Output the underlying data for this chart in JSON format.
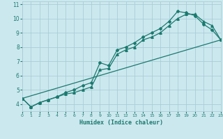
{
  "xlabel": "Humidex (Indice chaleur)",
  "bg_color": "#cce8ef",
  "grid_color": "#aacdd6",
  "line_color": "#1a7a6e",
  "xlim": [
    0,
    23
  ],
  "ylim": [
    3.5,
    11.2
  ],
  "xticks": [
    0,
    1,
    2,
    3,
    4,
    5,
    6,
    7,
    8,
    9,
    10,
    11,
    12,
    13,
    14,
    15,
    16,
    17,
    18,
    19,
    20,
    21,
    22,
    23
  ],
  "yticks": [
    4,
    5,
    6,
    7,
    8,
    9,
    10,
    11
  ],
  "series1_x": [
    0,
    1,
    2,
    3,
    4,
    5,
    6,
    7,
    8,
    9,
    10,
    11,
    12,
    13,
    14,
    15,
    16,
    17,
    18,
    19,
    20,
    21,
    22,
    23
  ],
  "series1_y": [
    4.4,
    3.8,
    4.1,
    4.3,
    4.5,
    4.7,
    4.8,
    5.0,
    5.2,
    6.4,
    6.5,
    7.5,
    7.8,
    8.0,
    8.5,
    8.7,
    9.0,
    9.5,
    10.0,
    10.3,
    10.3,
    9.8,
    9.5,
    8.5
  ],
  "series2_x": [
    0,
    1,
    2,
    3,
    4,
    5,
    6,
    7,
    8,
    9,
    10,
    11,
    12,
    13,
    14,
    15,
    16,
    17,
    18,
    19,
    20,
    21,
    22,
    23
  ],
  "series2_y": [
    4.4,
    3.8,
    4.1,
    4.3,
    4.5,
    4.8,
    5.0,
    5.3,
    5.5,
    6.9,
    6.7,
    7.8,
    8.0,
    8.3,
    8.7,
    9.0,
    9.3,
    9.8,
    10.5,
    10.4,
    10.2,
    9.6,
    9.2,
    8.5
  ],
  "series3_x": [
    0,
    23
  ],
  "series3_y": [
    4.4,
    8.5
  ]
}
